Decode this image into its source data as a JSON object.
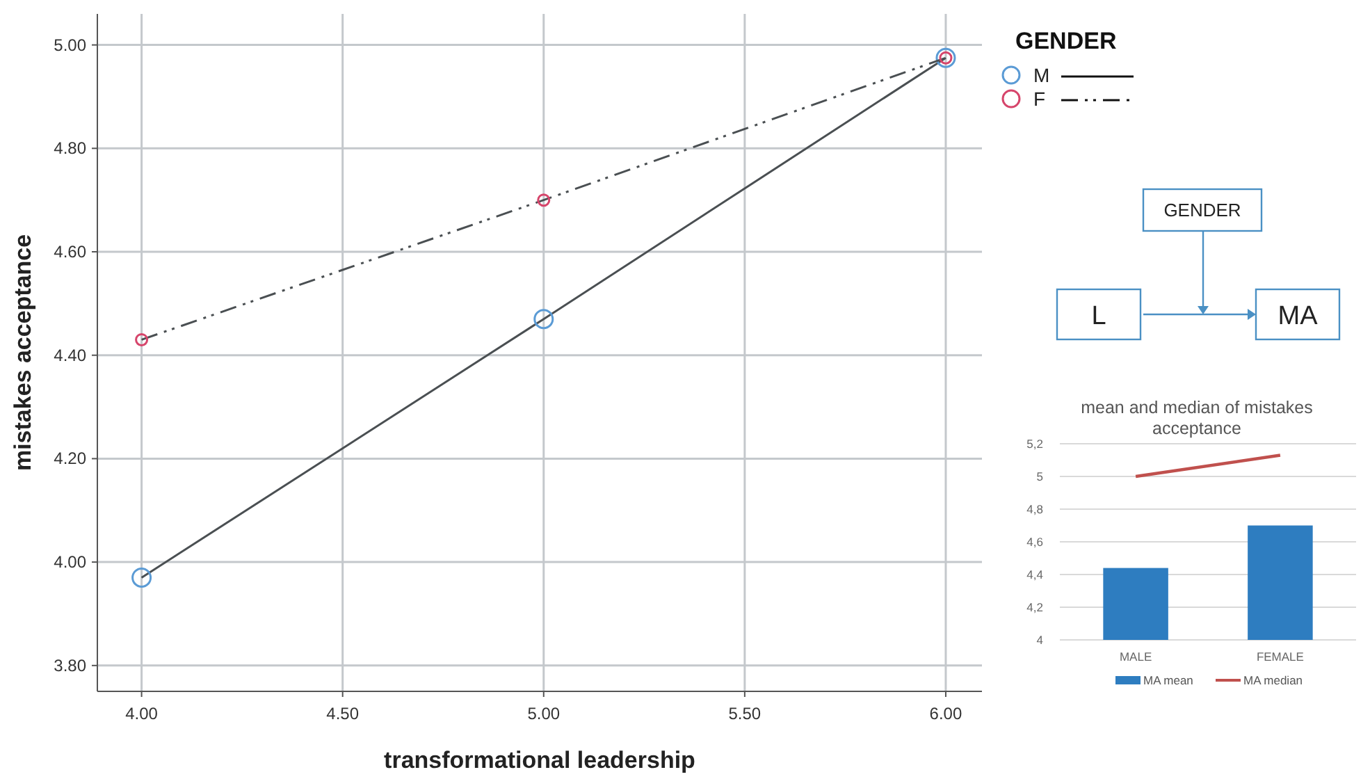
{
  "chart_data": [
    {
      "type": "line",
      "xlabel": "transformational leadership",
      "ylabel": "mistakes acceptance",
      "legend_title": "GENDER",
      "legend": "top right",
      "grid": true,
      "marker": "circle",
      "x": [
        4,
        5,
        6
      ],
      "xlim": [
        3.89,
        6.09
      ],
      "ylim": [
        3.75,
        5.06
      ],
      "xticks": [
        {
          "value": 4,
          "label": "4.00"
        },
        {
          "value": 4.5,
          "label": "4.50"
        },
        {
          "value": 5,
          "label": "5.00"
        },
        {
          "value": 5.5,
          "label": "5.50"
        },
        {
          "value": 6,
          "label": "6.00"
        }
      ],
      "yticks": [
        {
          "value": 3.8,
          "label": "3.80"
        },
        {
          "value": 4,
          "label": "4.00"
        },
        {
          "value": 4.2,
          "label": "4.20"
        },
        {
          "value": 4.4,
          "label": "4.40"
        },
        {
          "value": 4.6,
          "label": "4.60"
        },
        {
          "value": 4.8,
          "label": "4.80"
        },
        {
          "value": 5,
          "label": "5.00"
        }
      ],
      "series": [
        {
          "name": "M",
          "color": "#5b9bd5",
          "line_style": "solid",
          "values": [
            3.97,
            4.47,
            4.975
          ]
        },
        {
          "name": "F",
          "color": "#d6456b",
          "line_style": "dashed",
          "values": [
            4.43,
            4.7,
            4.975
          ]
        }
      ]
    },
    {
      "type": "other",
      "annotations": [
        "GENDER",
        "L",
        "MA"
      ]
    },
    {
      "type": "bar",
      "title": "mean and median of mistakes acceptance",
      "categories": [
        "MALE",
        "FEMALE"
      ],
      "legend": "bottom",
      "grid": "y",
      "ylim": [
        4,
        5.2
      ],
      "yticks": [
        4,
        {
          "value": 4.2,
          "label": "4,2"
        },
        {
          "value": 4.4,
          "label": "4,4"
        },
        {
          "value": 4.6,
          "label": "4,6"
        },
        {
          "value": 4.8,
          "label": "4,8"
        },
        5,
        {
          "value": 5.2,
          "label": "5,2"
        }
      ],
      "series": [
        {
          "name": "MA mean",
          "type": "bar",
          "color": "#2e7dc0",
          "values": [
            4.44,
            4.7
          ]
        },
        {
          "name": "MA median",
          "type": "line",
          "color": "#c0504d",
          "marker": "none",
          "values": [
            5.0,
            5.13
          ]
        }
      ]
    }
  ]
}
